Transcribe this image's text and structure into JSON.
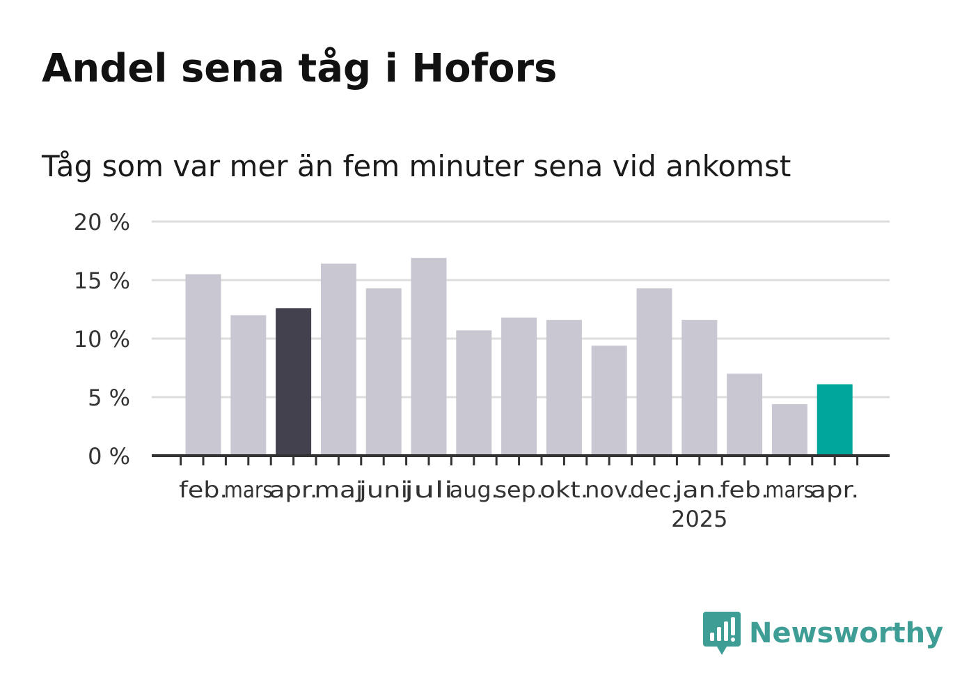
{
  "title": "Andel sena tåg i Hofors",
  "subtitle": "Tåg som var mer än fem minuter sena vid ankomst",
  "brand": {
    "name": "Newsworthy",
    "color": "#3e9e96",
    "icon": "newsworthy-logo-icon"
  },
  "chart_data": {
    "type": "bar",
    "categories": [
      "feb.",
      "mars",
      "apr.",
      "maj",
      "juni",
      "juli",
      "aug.",
      "sep.",
      "okt.",
      "nov.",
      "dec.",
      "jan.",
      "feb.",
      "mars",
      "apr."
    ],
    "category_sublabels": [
      "",
      "",
      "",
      "",
      "",
      "",
      "",
      "",
      "",
      "",
      "",
      "2025",
      "",
      "",
      ""
    ],
    "values": [
      15.5,
      12.0,
      12.6,
      16.4,
      14.3,
      16.9,
      10.7,
      11.8,
      11.6,
      9.4,
      14.3,
      11.6,
      7.0,
      4.4,
      6.1
    ],
    "unit": "%",
    "ylim": [
      0,
      20
    ],
    "yticks": [
      0,
      5,
      10,
      15,
      20
    ],
    "ytick_labels": [
      "0 %",
      "5 %",
      "10 %",
      "15 %",
      "20 %"
    ],
    "grid": true,
    "colors": {
      "default": "#c9c8d2",
      "highlight_dark": "#43414e",
      "highlight_latest": "#00a59a",
      "axis": "#333333",
      "grid": "#dddddd"
    },
    "bar_colors": [
      "#c9c8d2",
      "#c9c8d2",
      "#43414e",
      "#c9c8d2",
      "#c9c8d2",
      "#c9c8d2",
      "#c9c8d2",
      "#c9c8d2",
      "#c9c8d2",
      "#c9c8d2",
      "#c9c8d2",
      "#c9c8d2",
      "#c9c8d2",
      "#c9c8d2",
      "#00a59a"
    ]
  }
}
